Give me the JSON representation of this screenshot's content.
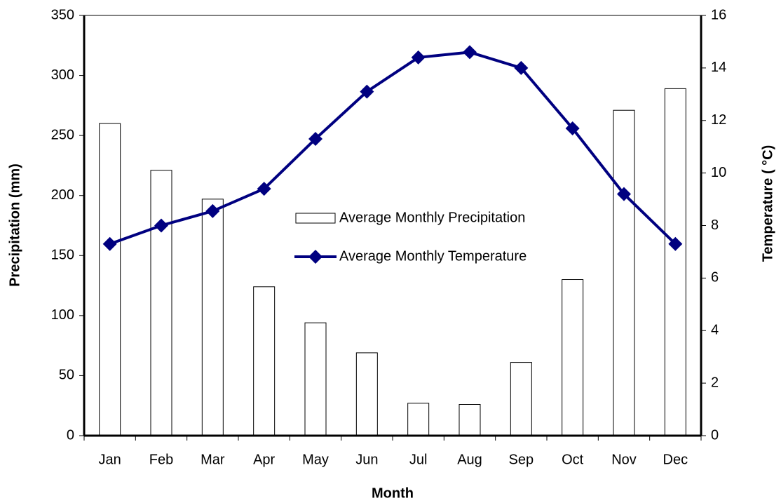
{
  "chart_data": {
    "type": "bar_line",
    "xlabel": "Month",
    "ylabel": "Precipitation (mm)",
    "y2label": "Temperature ( °C)",
    "categories": [
      "Jan",
      "Feb",
      "Mar",
      "Apr",
      "May",
      "Jun",
      "Jul",
      "Aug",
      "Sep",
      "Oct",
      "Nov",
      "Dec"
    ],
    "series": [
      {
        "name": "Average Monthly Precipitation",
        "type": "bar",
        "color": "#ffffff",
        "values": [
          260,
          221,
          197,
          124,
          94,
          69,
          27,
          26,
          61,
          130,
          271,
          289
        ]
      },
      {
        "name": "Average Monthly Temperature",
        "type": "line",
        "axis": "y2",
        "color": "#000080",
        "values": [
          7.3,
          8.0,
          8.55,
          9.4,
          11.3,
          13.1,
          14.4,
          14.6,
          14.0,
          11.7,
          9.2,
          7.3
        ]
      }
    ],
    "ylim": [
      0,
      350
    ],
    "yticks": [
      0,
      50,
      100,
      150,
      200,
      250,
      300,
      350
    ],
    "y2lim": [
      0,
      16
    ],
    "y2ticks": [
      0,
      2,
      4,
      6,
      8,
      10,
      12,
      14,
      16
    ],
    "grid": false
  }
}
